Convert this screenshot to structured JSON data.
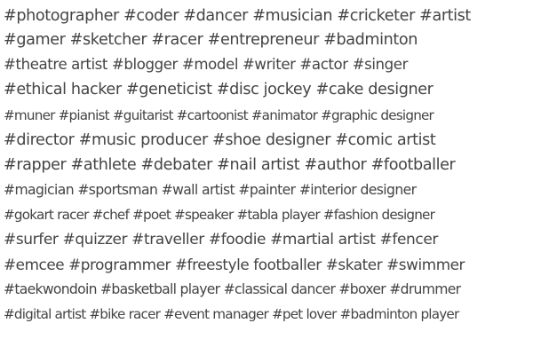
{
  "text_color": "#444444",
  "background_color": "#ffffff",
  "lines": [
    "#photographer #coder #dancer #musician #cricketer #artist",
    "#gamer #sketcher #racer #entrepreneur #badminton",
    "#theatre artist #blogger #model #writer #actor #singer",
    "#ethical hacker #geneticist #disc jockey #cake designer",
    "#muner #pianist #guitarist #cartoonist #animator #graphic designer",
    "#director #music producer #shoe designer #comic artist",
    "#rapper #athlete #debater #nail artist #author #footballer",
    "#magician #sportsman #wall artist #painter #interior designer",
    "#gokart racer #chef #poet #speaker #tabla player #fashion designer",
    "#surfer #quizzer #traveller #foodie #martial artist #fencer",
    "#emcee #programmer #freestyle footballer #skater #swimmer",
    "#taekwondoin #basketball player #classical dancer #boxer #drummer",
    "#digital artist #bike racer #event manager #pet lover #badminton player"
  ]
}
